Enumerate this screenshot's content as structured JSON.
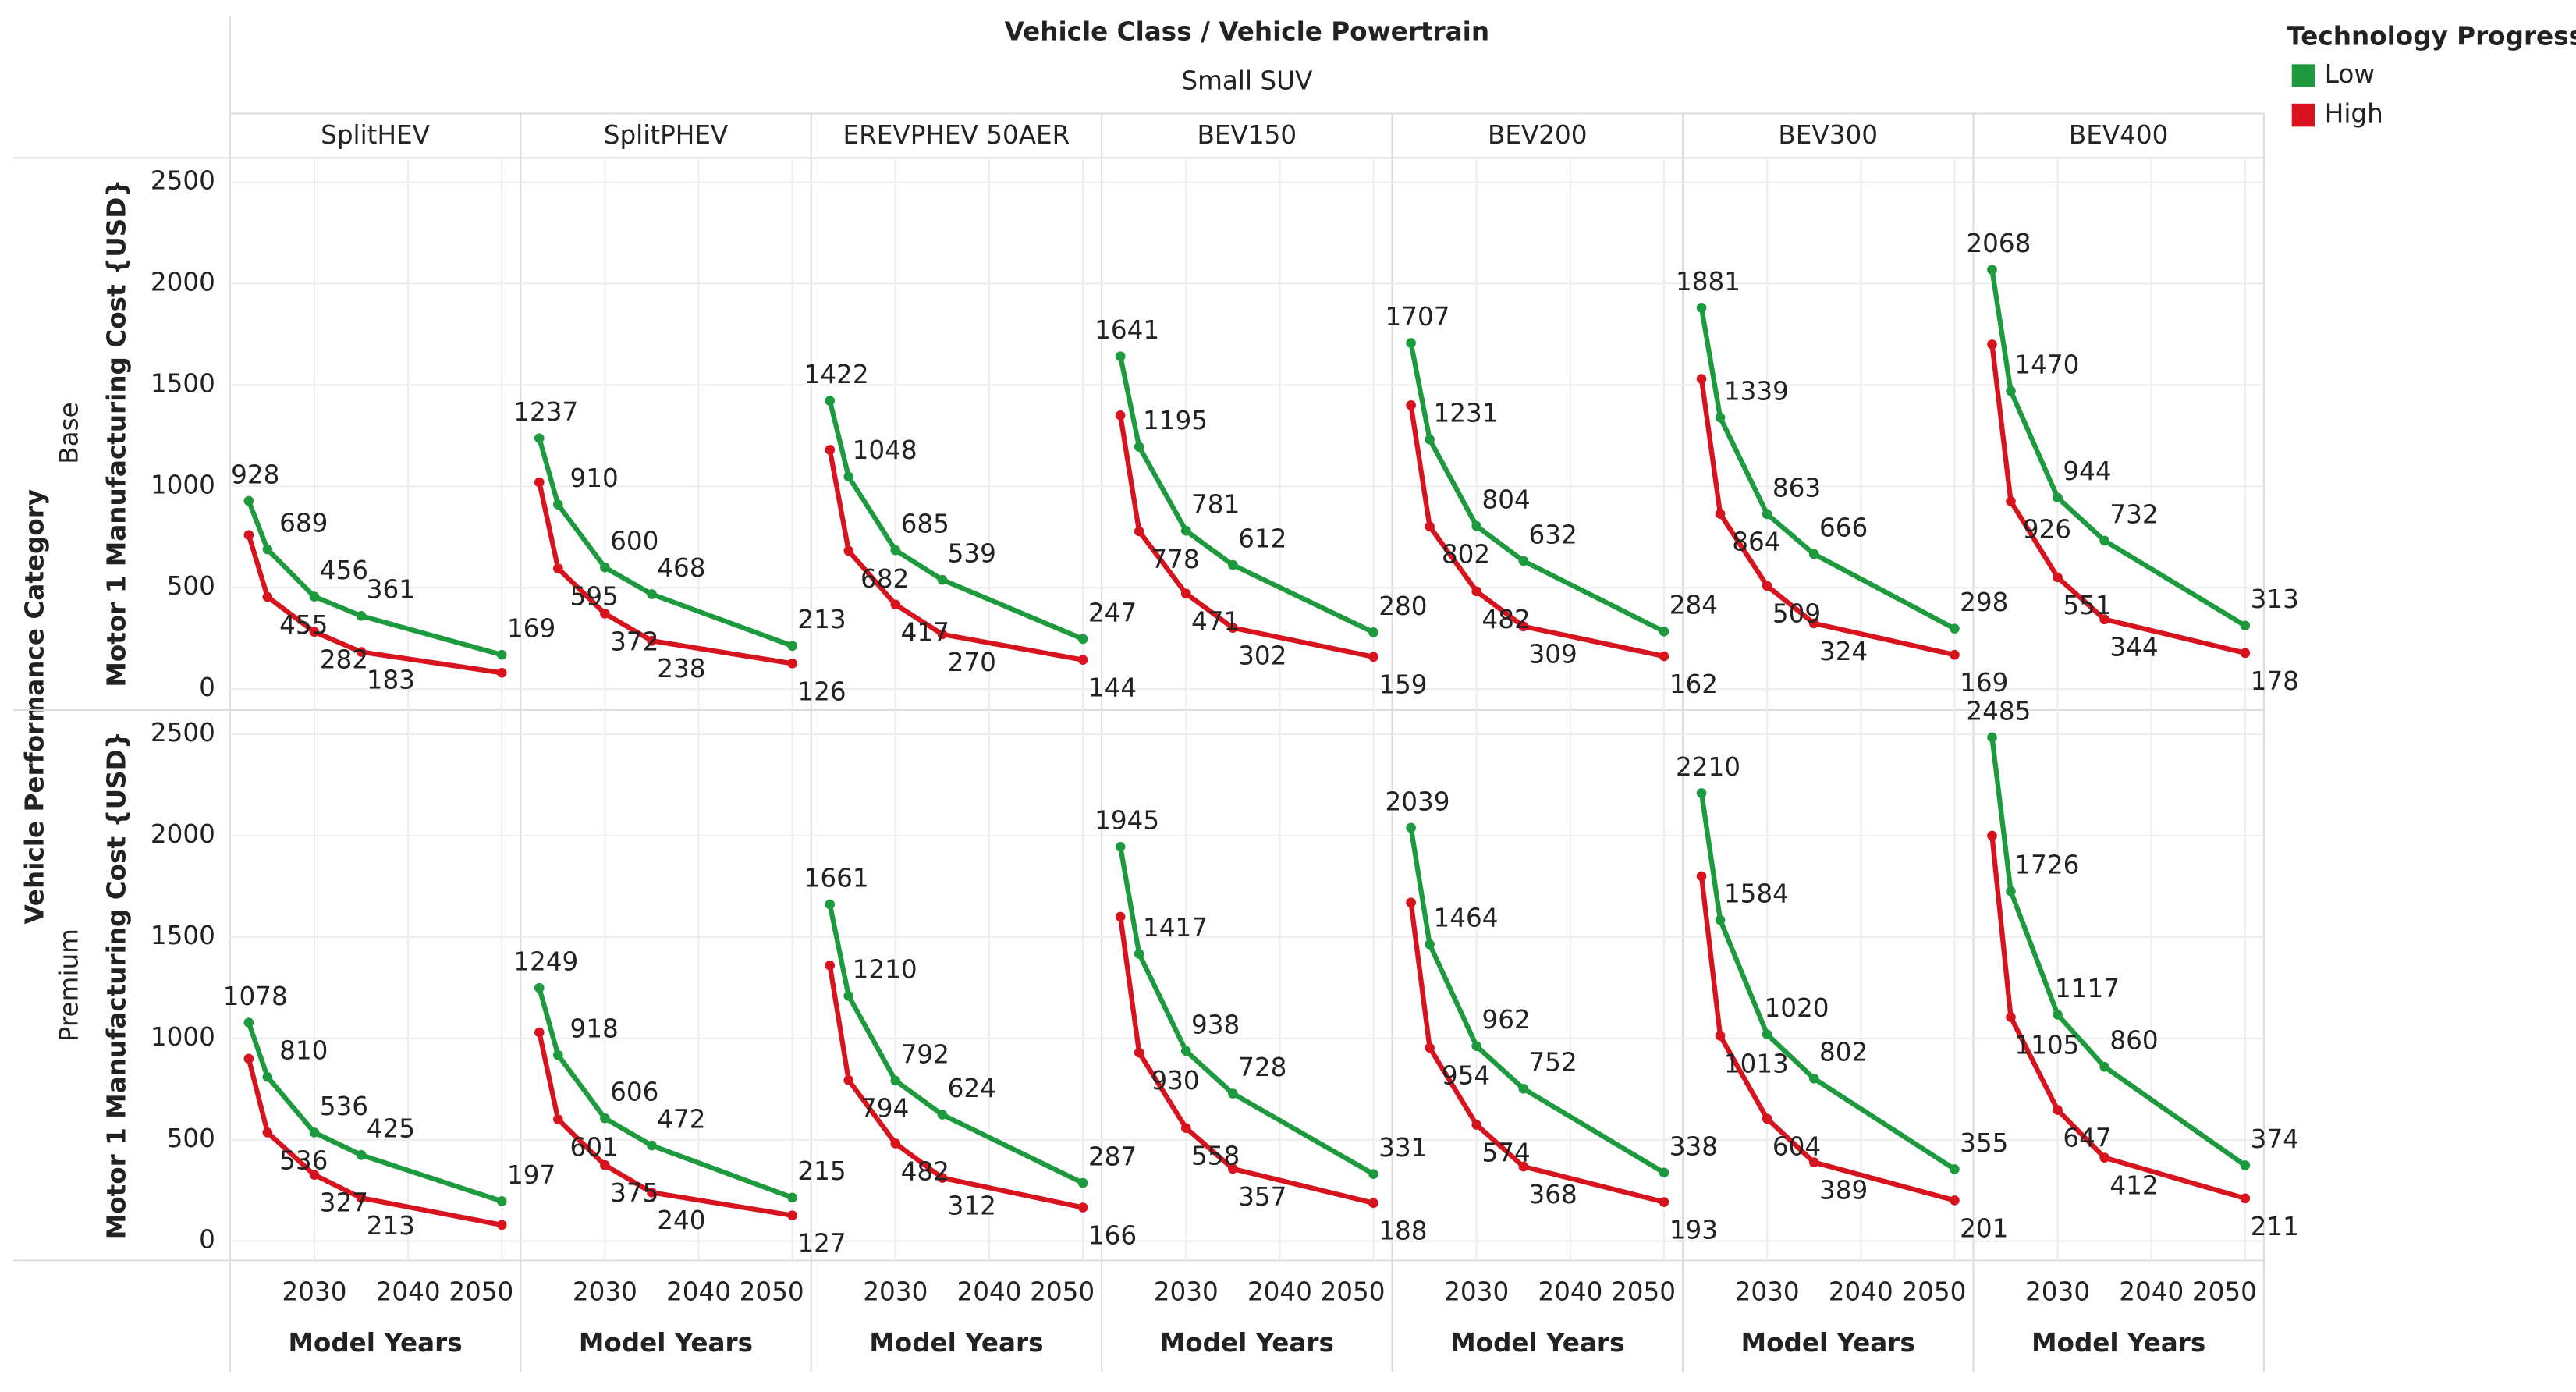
{
  "chart_data": {
    "type": "line",
    "title": "Vehicle Class / Vehicle Powertrain",
    "subtitle": "Small SUV",
    "columns": [
      "SplitHEV",
      "SplitPHEV",
      "EREVPHEV 50AER",
      "BEV150",
      "BEV200",
      "BEV300",
      "BEV400"
    ],
    "rows": [
      "Base",
      "Premium"
    ],
    "row_title": "Vehicle Performance Category",
    "y_label": "Motor 1 Manufacturing Cost {USD}",
    "x_label": "Model Years",
    "legend_title": "Technology Progress",
    "x": [
      2023,
      2025,
      2030,
      2035,
      2050
    ],
    "xlim": [
      2021,
      2052
    ],
    "xticks": [
      2030,
      2040,
      2050
    ],
    "ylim": [
      -95,
      2620
    ],
    "yticks": [
      0,
      500,
      1000,
      1500,
      2000,
      2500
    ],
    "grid": true,
    "series": [
      {
        "name": "Low",
        "color": "#1e9a3e",
        "values": [
          [
            [
              928,
              689,
              456,
              361,
              169
            ],
            [
              1237,
              910,
              600,
              468,
              213
            ],
            [
              1422,
              1048,
              685,
              539,
              247
            ],
            [
              1641,
              1195,
              781,
              612,
              280
            ],
            [
              1707,
              1231,
              804,
              632,
              284
            ],
            [
              1881,
              1339,
              863,
              666,
              298
            ],
            [
              2068,
              1470,
              944,
              732,
              313
            ]
          ],
          [
            [
              1078,
              810,
              536,
              425,
              197
            ],
            [
              1249,
              918,
              606,
              472,
              215
            ],
            [
              1661,
              1210,
              792,
              624,
              287
            ],
            [
              1945,
              1417,
              938,
              728,
              331
            ],
            [
              2039,
              1464,
              962,
              752,
              338
            ],
            [
              2210,
              1584,
              1020,
              802,
              355
            ],
            [
              2485,
              1726,
              1117,
              860,
              374
            ]
          ]
        ]
      },
      {
        "name": "High",
        "color": "#d7141e",
        "values": [
          [
            [
              760,
              455,
              282,
              183,
              80
            ],
            [
              1020,
              595,
              372,
              238,
              126
            ],
            [
              1180,
              682,
              417,
              270,
              144
            ],
            [
              1350,
              778,
              471,
              302,
              159
            ],
            [
              1400,
              802,
              482,
              309,
              162
            ],
            [
              1530,
              864,
              509,
              324,
              169
            ],
            [
              1700,
              926,
              551,
              344,
              178
            ]
          ],
          [
            [
              900,
              536,
              327,
              213,
              80
            ],
            [
              1030,
              601,
              375,
              240,
              127
            ],
            [
              1360,
              794,
              482,
              312,
              166
            ],
            [
              1600,
              930,
              558,
              357,
              188
            ],
            [
              1670,
              954,
              574,
              368,
              193
            ],
            [
              1800,
              1013,
              604,
              389,
              201
            ],
            [
              2000,
              1105,
              647,
              412,
              211
            ]
          ]
        ],
        "value_labels": [
          [
            [
              null,
              "455",
              "282",
              "183",
              null
            ],
            [
              null,
              "595",
              "372",
              "238",
              "126"
            ],
            [
              null,
              "682",
              "417",
              "270",
              "144"
            ],
            [
              null,
              "778",
              "471",
              "302",
              "159"
            ],
            [
              null,
              "802",
              "482",
              "309",
              "162"
            ],
            [
              null,
              "864",
              "509",
              "324",
              "169"
            ],
            [
              null,
              "926",
              "551",
              "344",
              "178"
            ]
          ],
          [
            [
              null,
              "536",
              "327",
              "213",
              null
            ],
            [
              null,
              "601",
              "375",
              "240",
              "127"
            ],
            [
              null,
              "794",
              "482",
              "312",
              "166"
            ],
            [
              null,
              "930",
              "558",
              "357",
              "188"
            ],
            [
              null,
              "954",
              "574",
              "368",
              "193"
            ],
            [
              null,
              "1013",
              "604",
              "389",
              "201"
            ],
            [
              null,
              "1105",
              "647",
              "412",
              "211"
            ]
          ]
        ]
      }
    ]
  }
}
